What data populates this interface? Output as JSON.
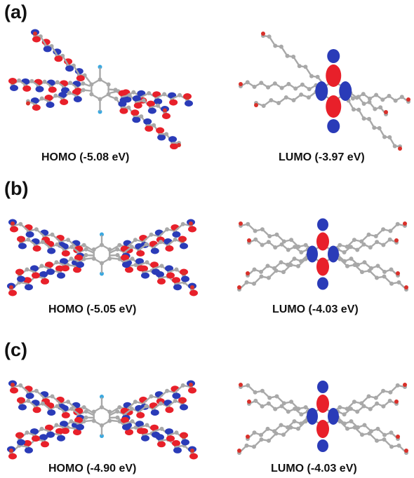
{
  "colors": {
    "positive_lobe": "#e8202a",
    "negative_lobe": "#2a3bb8",
    "carbon_atom": "#a8a8a8",
    "nitrogen_atom": "#3aa8e0",
    "oxygen_atom": "#d9302a"
  },
  "panels": [
    {
      "label": "(a)",
      "homo_caption": "HOMO (-5.08 eV)",
      "lumo_caption": "LUMO (-3.97 eV)"
    },
    {
      "label": "(b)",
      "homo_caption": "HOMO (-5.05 eV)",
      "lumo_caption": "LUMO (-4.03 eV)"
    },
    {
      "label": "(c)",
      "homo_caption": "HOMO (-4.90 eV)",
      "lumo_caption": "LUMO (-4.03 eV)"
    }
  ]
}
